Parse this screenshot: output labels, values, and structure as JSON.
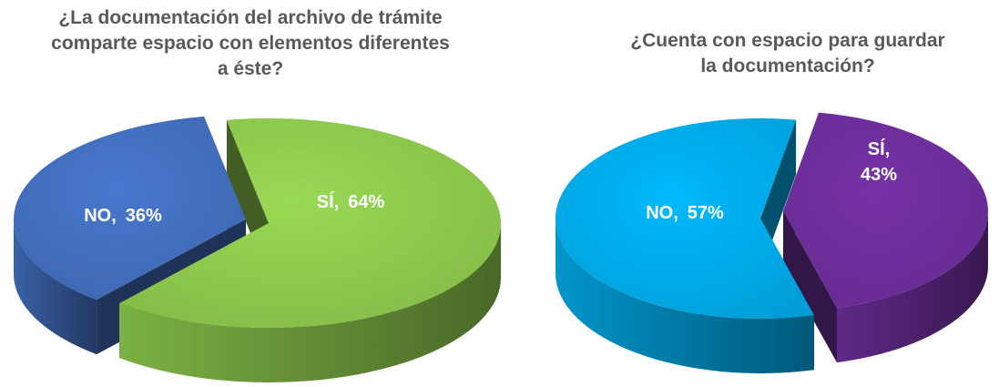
{
  "chart_data": [
    {
      "type": "pie",
      "title": "¿La documentación del archivo de trámite comparte espacio con elementos diferentes a éste?",
      "categories": [
        "NO,",
        "SÍ,"
      ],
      "values": [
        36,
        64
      ],
      "value_labels": [
        "36%",
        "64%"
      ],
      "colors": [
        "#4472c4",
        "#92d050"
      ],
      "exploded": [
        true,
        false
      ]
    },
    {
      "type": "pie",
      "title": "¿Cuenta con espacio para guardar la documentación?",
      "categories": [
        "NO,",
        "SÍ,"
      ],
      "values": [
        57,
        43
      ],
      "value_labels": [
        "57%",
        "43%"
      ],
      "colors": [
        "#00b0f0",
        "#7030a0"
      ],
      "exploded": [
        false,
        true
      ]
    }
  ]
}
